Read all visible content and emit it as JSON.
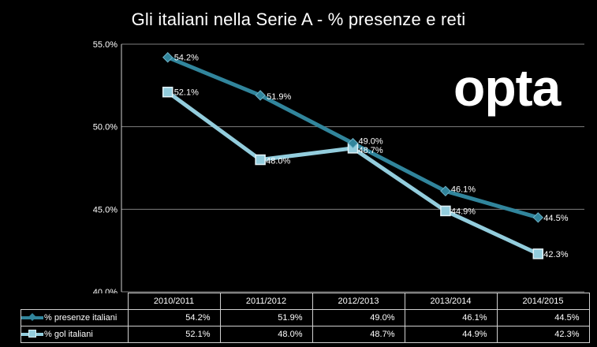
{
  "title": "Gli italiani nella Serie A -  % presenze e reti",
  "logo": "opta",
  "colors": {
    "presenze": "#31859c",
    "gol": "#93cddd",
    "background": "#000000",
    "grid": "#7f7f7f"
  },
  "chart_data": {
    "type": "line",
    "categories": [
      "2010/2011",
      "2011/2012",
      "2012/2013",
      "2013/2014",
      "2014/2015"
    ],
    "series": [
      {
        "name": "% presenze italiani",
        "values": [
          54.2,
          51.9,
          49.0,
          46.1,
          44.5
        ],
        "labels": [
          "54.2%",
          "51.9%",
          "49.0%",
          "46.1%",
          "44.5%"
        ],
        "marker": "diamond"
      },
      {
        "name": "% gol italiani",
        "values": [
          52.1,
          48.0,
          48.7,
          44.9,
          42.3
        ],
        "labels": [
          "52.1%",
          "48.0%",
          "48.7%",
          "44.9%",
          "42.3%"
        ],
        "marker": "square"
      }
    ],
    "yticks": [
      "40.0%",
      "45.0%",
      "50.0%",
      "55.0%"
    ],
    "ylim": [
      40,
      55
    ],
    "grid": true,
    "legend": "data-table",
    "title": "Gli italiani nella Serie A -  % presenze e reti"
  }
}
